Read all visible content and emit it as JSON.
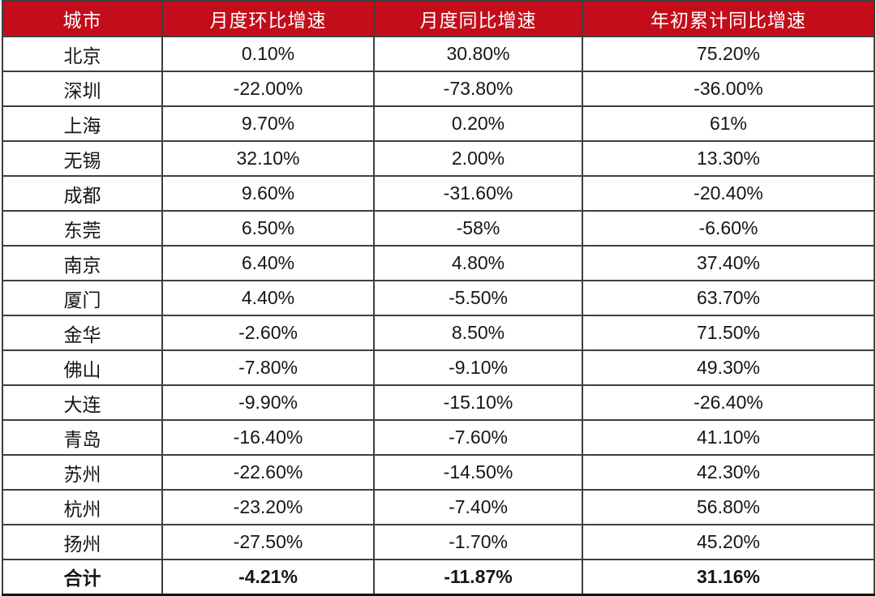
{
  "chart_data": {
    "type": "table",
    "columns": [
      "城市",
      "月度环比增速",
      "月度同比增速",
      "年初累计同比增速"
    ],
    "rows": [
      [
        "北京",
        "0.10%",
        "30.80%",
        "75.20%"
      ],
      [
        "深圳",
        "-22.00%",
        "-73.80%",
        "-36.00%"
      ],
      [
        "上海",
        "9.70%",
        "0.20%",
        "61%"
      ],
      [
        "无锡",
        "32.10%",
        "2.00%",
        "13.30%"
      ],
      [
        "成都",
        "9.60%",
        "-31.60%",
        "-20.40%"
      ],
      [
        "东莞",
        "6.50%",
        "-58%",
        "-6.60%"
      ],
      [
        "南京",
        "6.40%",
        "4.80%",
        "37.40%"
      ],
      [
        "厦门",
        "4.40%",
        "-5.50%",
        "63.70%"
      ],
      [
        "金华",
        "-2.60%",
        "8.50%",
        "71.50%"
      ],
      [
        "佛山",
        "-7.80%",
        "-9.10%",
        "49.30%"
      ],
      [
        "大连",
        "-9.90%",
        "-15.10%",
        "-26.40%"
      ],
      [
        "青岛",
        "-16.40%",
        "-7.60%",
        "41.10%"
      ],
      [
        "苏州",
        "-22.60%",
        "-14.50%",
        "42.30%"
      ],
      [
        "杭州",
        "-23.20%",
        "-7.40%",
        "56.80%"
      ],
      [
        "扬州",
        "-27.50%",
        "-1.70%",
        "45.20%"
      ]
    ],
    "total_row": [
      "合计",
      "-4.21%",
      "-11.87%",
      "31.16%"
    ],
    "layout_hints": {
      "header_style": "red background, white centered text",
      "alignment": "all cells centered",
      "total_row_bold": true,
      "grid": "on"
    }
  },
  "colors": {
    "header_bg": "#C30D1A",
    "header_text": "#FFFFFF",
    "body_text": "#161616",
    "grid_line": "#3F3F3F",
    "outer_frame": "#141414"
  }
}
